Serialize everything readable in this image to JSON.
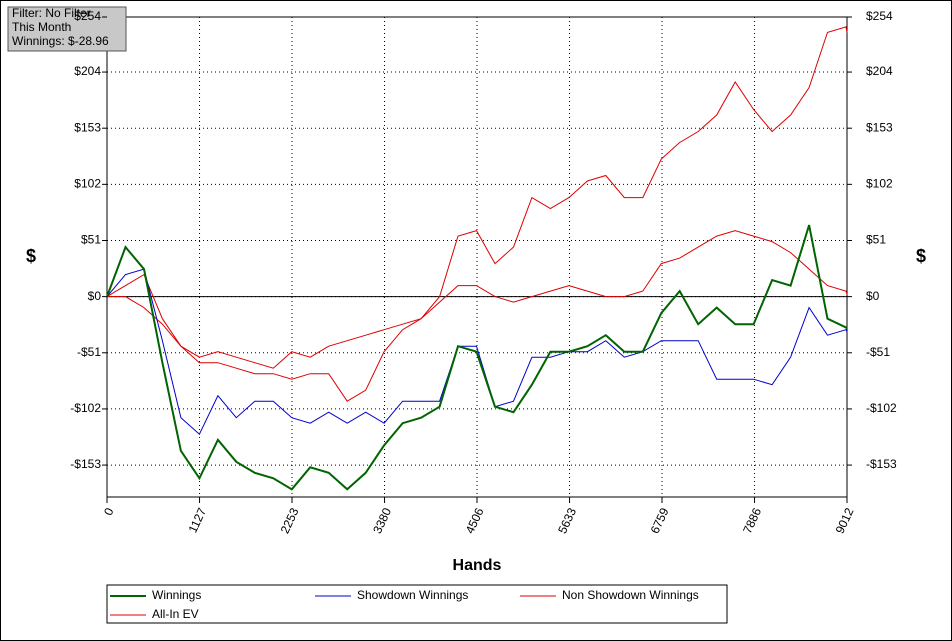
{
  "chart_data": {
    "type": "line",
    "info": [
      "Filter: No Filter",
      "This Month",
      "Winnings: $-28.96"
    ],
    "x_label": "Hands",
    "y_label": "$",
    "y2_label": "$",
    "x": [
      0,
      225,
      450,
      675,
      900,
      1125,
      1350,
      1575,
      1800,
      2025,
      2250,
      2475,
      2700,
      2925,
      3150,
      3375,
      3600,
      3825,
      4050,
      4275,
      4500,
      4725,
      4950,
      5175,
      5400,
      5625,
      5850,
      6075,
      6300,
      6525,
      6750,
      6975,
      7200,
      7425,
      7650,
      7875,
      8100,
      8325,
      8550,
      8775,
      9000,
      9012
    ],
    "xlim": [
      0,
      9012
    ],
    "xticks": [
      0,
      1127,
      2253,
      3380,
      4506,
      5633,
      6759,
      7886,
      9012
    ],
    "ylim": [
      -182,
      254
    ],
    "yticks": [
      {
        "value": -153,
        "label": "-$153"
      },
      {
        "value": -102,
        "label": "-$102"
      },
      {
        "value": -51,
        "label": "-$51"
      },
      {
        "value": 0,
        "label": "$0"
      },
      {
        "value": 51,
        "label": "$51"
      },
      {
        "value": 102,
        "label": "$102"
      },
      {
        "value": 153,
        "label": "$153"
      },
      {
        "value": 204,
        "label": "$204"
      },
      {
        "value": 254,
        "label": "$254"
      }
    ],
    "y2lim": [
      -182,
      254
    ],
    "y2ticks": [
      {
        "value": -153,
        "label": "-$153"
      },
      {
        "value": -102,
        "label": "-$102"
      },
      {
        "value": -51,
        "label": "-$51"
      },
      {
        "value": 0,
        "label": "$0"
      },
      {
        "value": 51,
        "label": "$51"
      },
      {
        "value": 102,
        "label": "$102"
      },
      {
        "value": 153,
        "label": "$153"
      },
      {
        "value": 204,
        "label": "$204"
      },
      {
        "value": 254,
        "label": "$254"
      }
    ],
    "grid": true,
    "series": [
      {
        "name": "Winnings",
        "color": "#006400",
        "line_width": 2,
        "values": [
          0,
          45,
          25,
          -60,
          -140,
          -165,
          -130,
          -150,
          -160,
          -165,
          -175,
          -155,
          -160,
          -175,
          -160,
          -135,
          -115,
          -110,
          -100,
          -45,
          -50,
          -100,
          -105,
          -80,
          -50,
          -50,
          -45,
          -35,
          -50,
          -50,
          -15,
          5,
          -25,
          -10,
          -25,
          -25,
          15,
          10,
          65,
          -20,
          -28,
          -28.96
        ]
      },
      {
        "name": "Showdown Winnings",
        "color": "#0000cc",
        "line_width": 1,
        "values": [
          0,
          20,
          25,
          -40,
          -110,
          -125,
          -90,
          -110,
          -95,
          -95,
          -110,
          -115,
          -105,
          -115,
          -105,
          -115,
          -95,
          -95,
          -95,
          -45,
          -45,
          -100,
          -95,
          -55,
          -55,
          -50,
          -50,
          -40,
          -55,
          -50,
          -40,
          -40,
          -40,
          -75,
          -75,
          -75,
          -80,
          -55,
          -10,
          -35,
          -30,
          -32
        ]
      },
      {
        "name": "Non Showdown Winnings",
        "color": "#dd0000",
        "line_width": 1,
        "values": [
          0,
          0,
          -10,
          -25,
          -45,
          -55,
          -50,
          -55,
          -60,
          -65,
          -50,
          -55,
          -45,
          -40,
          -35,
          -30,
          -25,
          -20,
          -5,
          10,
          10,
          0,
          -5,
          0,
          5,
          10,
          5,
          0,
          0,
          5,
          30,
          35,
          45,
          55,
          60,
          55,
          50,
          40,
          25,
          10,
          5,
          2
        ]
      },
      {
        "name": "All-In EV",
        "color": "#dd0000",
        "line_width": 1,
        "values": [
          0,
          10,
          20,
          -20,
          -45,
          -60,
          -60,
          -65,
          -70,
          -70,
          -75,
          -70,
          -70,
          -95,
          -85,
          -50,
          -30,
          -20,
          0,
          55,
          60,
          30,
          45,
          90,
          80,
          90,
          105,
          110,
          90,
          90,
          125,
          140,
          150,
          165,
          195,
          170,
          150,
          165,
          190,
          240,
          245,
          240
        ]
      }
    ]
  }
}
